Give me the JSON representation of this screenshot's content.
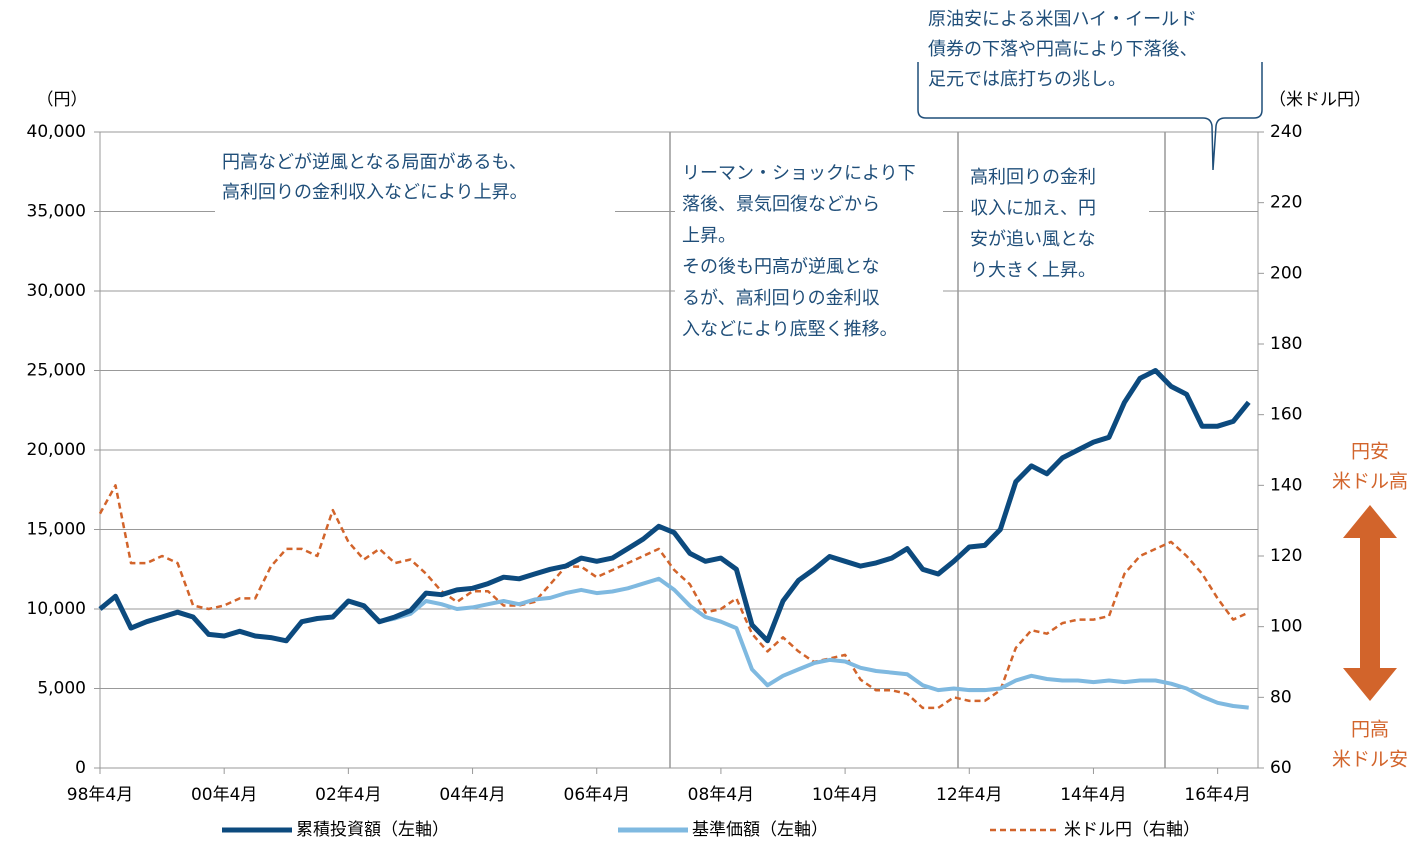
{
  "chart_data": {
    "type": "line",
    "y_axis_label": "（円）",
    "y2_axis_label": "（米ドル円）",
    "categories": [
      "98年4月",
      null,
      null,
      null,
      null,
      null,
      null,
      null,
      "00年4月",
      null,
      null,
      null,
      null,
      null,
      null,
      null,
      "02年4月",
      null,
      null,
      null,
      null,
      null,
      null,
      null,
      "04年4月",
      null,
      null,
      null,
      null,
      null,
      null,
      null,
      "06年4月",
      null,
      null,
      null,
      null,
      null,
      null,
      null,
      "08年4月",
      null,
      null,
      null,
      null,
      null,
      null,
      null,
      "10年4月",
      null,
      null,
      null,
      null,
      null,
      null,
      null,
      "12年4月",
      null,
      null,
      null,
      null,
      null,
      null,
      null,
      "14年4月",
      null,
      null,
      null,
      null,
      null,
      null,
      null,
      "16年4月",
      null,
      null
    ],
    "series": [
      {
        "name": "米ドル円（右軸）",
        "color": "#d2642b",
        "dashed": true,
        "axis": "y2",
        "values": [
          132,
          140,
          118,
          118,
          120,
          118,
          106,
          105,
          106,
          108,
          108,
          117,
          122,
          122,
          120,
          133,
          124,
          119,
          122,
          118,
          119,
          115,
          110,
          107,
          110,
          110,
          106,
          106,
          107,
          112,
          117,
          117,
          114,
          116,
          118,
          120,
          122,
          116,
          112,
          104,
          105,
          108,
          98,
          93,
          97,
          93,
          90,
          91,
          92,
          85,
          82,
          82,
          81,
          77,
          77,
          80,
          79,
          79,
          82,
          94,
          99,
          98,
          101,
          102,
          102,
          103,
          115,
          120,
          122,
          124,
          120,
          115,
          108,
          102,
          104
        ]
      },
      {
        "name": "基準価額（左軸）",
        "color": "#7fb9e0",
        "dashed": false,
        "values": [
          10000,
          10800,
          8800,
          9200,
          9500,
          9800,
          9500,
          8400,
          8300,
          8600,
          8300,
          8200,
          8000,
          9200,
          9400,
          9500,
          10500,
          10200,
          9200,
          9400,
          9700,
          10500,
          10300,
          10000,
          10100,
          10300,
          10500,
          10300,
          10600,
          10700,
          11000,
          11200,
          11000,
          11100,
          11300,
          11600,
          11900,
          11200,
          10200,
          9500,
          9200,
          8800,
          6200,
          5200,
          5800,
          6200,
          6600,
          6800,
          6700,
          6300,
          6100,
          6000,
          5900,
          5200,
          4900,
          5000,
          4900,
          4900,
          5000,
          5500,
          5800,
          5600,
          5500,
          5500,
          5400,
          5500,
          5400,
          5500,
          5500,
          5300,
          5000,
          4500,
          4100,
          3900,
          3800
        ]
      },
      {
        "name": "累積投資額（左軸）",
        "color": "#0c4a7e",
        "dashed": false,
        "values": [
          10000,
          10800,
          8800,
          9200,
          9500,
          9800,
          9500,
          8400,
          8300,
          8600,
          8300,
          8200,
          8000,
          9200,
          9400,
          9500,
          10500,
          10200,
          9200,
          9500,
          9900,
          11000,
          10900,
          11200,
          11300,
          11600,
          12000,
          11900,
          12200,
          12500,
          12700,
          13200,
          13000,
          13200,
          13800,
          14400,
          15200,
          14800,
          13500,
          13000,
          13200,
          12500,
          9000,
          8000,
          10500,
          11800,
          12500,
          13300,
          13000,
          12700,
          12900,
          13200,
          13800,
          12500,
          12200,
          13000,
          13900,
          14000,
          15000,
          18000,
          19000,
          18500,
          19500,
          20000,
          20500,
          20800,
          23000,
          24500,
          25000,
          24000,
          23500,
          21500,
          21500,
          21800,
          23000
        ]
      }
    ],
    "ylim": [
      0,
      40000
    ],
    "yticks": [
      0,
      {
        "value": 5000,
        "label": "5,000"
      },
      {
        "value": 10000,
        "label": "10,000"
      },
      {
        "value": 15000,
        "label": "15,000"
      },
      {
        "value": 20000,
        "label": "20,000"
      },
      {
        "value": 25000,
        "label": "25,000"
      },
      {
        "value": 30000,
        "label": "30,000"
      },
      {
        "value": 35000,
        "label": "35,000"
      },
      {
        "value": 40000,
        "label": "40,000"
      }
    ],
    "y2lim": [
      60,
      240
    ],
    "y2ticks": [
      60,
      80,
      100,
      120,
      140,
      160,
      180,
      200,
      220,
      240
    ],
    "grid": true,
    "legend": "bottom",
    "annotations": [
      [
        "円高などが逆風となる局面があるも、",
        "高利回りの金利収入などにより上昇。"
      ],
      [
        "リーマン・ショックにより下",
        "落後、景気回復などから",
        "上昇。",
        "その後も円高が逆風とな",
        "るが、高利回りの金利収",
        "入などにより底堅く推移。"
      ],
      [
        "高利回りの金利",
        "収入に加え、円",
        "安が追い風とな",
        "り大きく上昇。"
      ],
      [
        "原油安による米国ハイ・イールド",
        "債券の下落や円高により下落後、",
        "足元では底打ちの兆し。"
      ]
    ],
    "side_labels": {
      "top": [
        "円安",
        "米ドル高"
      ],
      "bottom": [
        "円高",
        "米ドル安"
      ]
    }
  }
}
